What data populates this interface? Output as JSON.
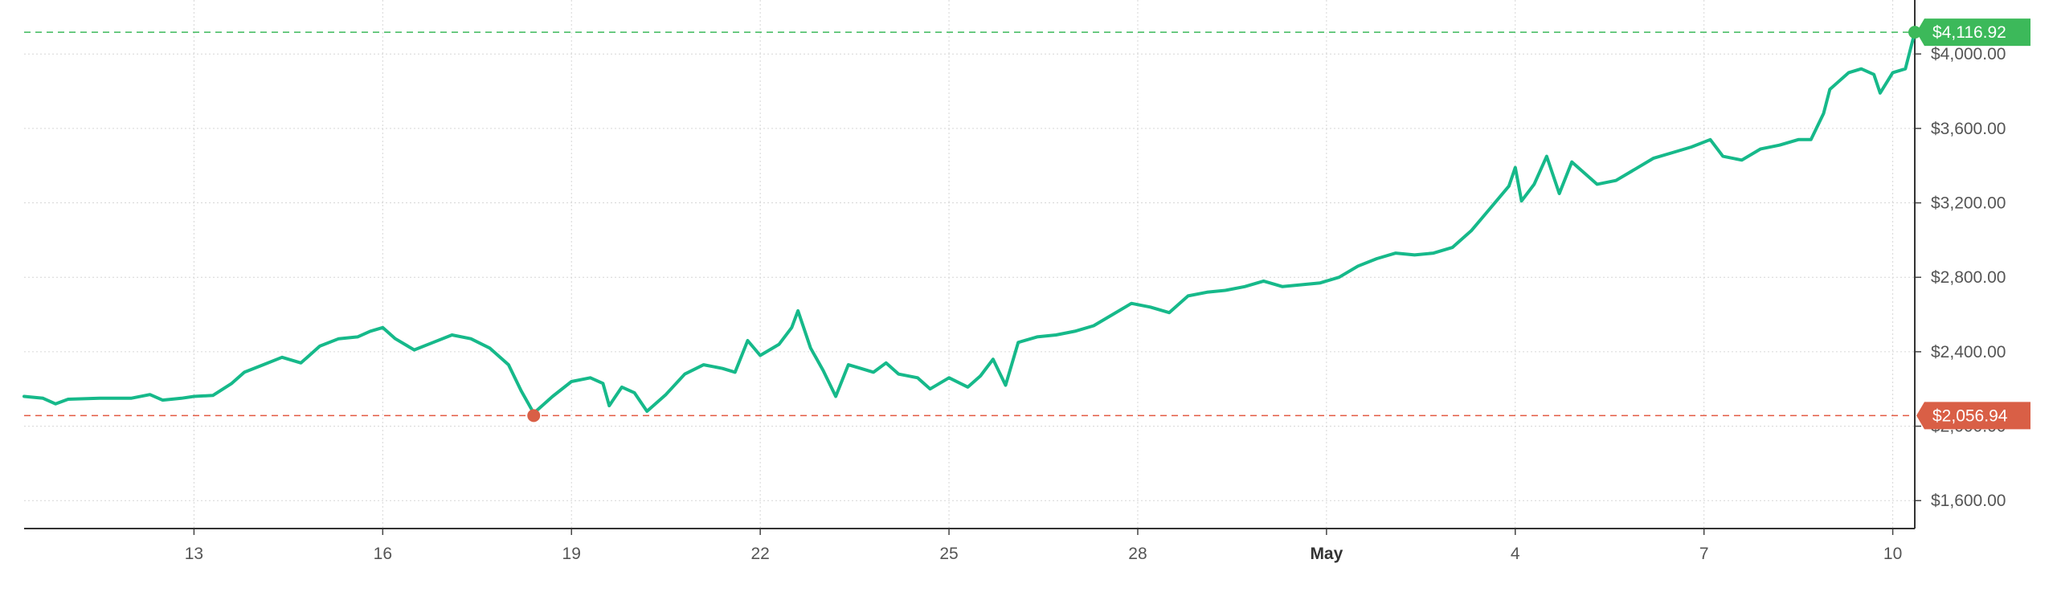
{
  "chart_data": {
    "type": "line",
    "title": "",
    "xlabel": "",
    "ylabel": "",
    "x_ticks": [
      {
        "label": "13",
        "bold": false
      },
      {
        "label": "16",
        "bold": false
      },
      {
        "label": "19",
        "bold": false
      },
      {
        "label": "22",
        "bold": false
      },
      {
        "label": "25",
        "bold": false
      },
      {
        "label": "28",
        "bold": false
      },
      {
        "label": "May",
        "bold": true
      },
      {
        "label": "4",
        "bold": false
      },
      {
        "label": "7",
        "bold": false
      },
      {
        "label": "10",
        "bold": false
      }
    ],
    "x_tick_days": [
      13,
      16,
      19,
      22,
      25,
      28,
      31,
      34,
      37,
      40
    ],
    "xlim": [
      10.3,
      40.35
    ],
    "ylim": [
      1450,
      4290
    ],
    "y_ticks": [
      {
        "value": 1600,
        "label": "$1,600.00"
      },
      {
        "value": 2000,
        "label": "$2,000.00"
      },
      {
        "value": 2400,
        "label": "$2,400.00"
      },
      {
        "value": 2800,
        "label": "$2,800.00"
      },
      {
        "value": 3200,
        "label": "$3,200.00"
      },
      {
        "value": 3600,
        "label": "$3,600.00"
      },
      {
        "value": 4000,
        "label": "$4,000.00"
      }
    ],
    "grid": true,
    "series": [
      {
        "color": "#16b98a",
        "points": [
          [
            10.3,
            2160
          ],
          [
            10.6,
            2150
          ],
          [
            10.8,
            2120
          ],
          [
            11.0,
            2145
          ],
          [
            11.5,
            2150
          ],
          [
            12.0,
            2150
          ],
          [
            12.3,
            2170
          ],
          [
            12.5,
            2140
          ],
          [
            12.8,
            2150
          ],
          [
            13.0,
            2160
          ],
          [
            13.3,
            2165
          ],
          [
            13.6,
            2230
          ],
          [
            13.8,
            2290
          ],
          [
            14.1,
            2330
          ],
          [
            14.4,
            2370
          ],
          [
            14.7,
            2340
          ],
          [
            15.0,
            2430
          ],
          [
            15.3,
            2470
          ],
          [
            15.6,
            2480
          ],
          [
            15.8,
            2510
          ],
          [
            16.0,
            2530
          ],
          [
            16.2,
            2470
          ],
          [
            16.5,
            2410
          ],
          [
            16.8,
            2450
          ],
          [
            17.1,
            2490
          ],
          [
            17.4,
            2470
          ],
          [
            17.7,
            2420
          ],
          [
            18.0,
            2330
          ],
          [
            18.2,
            2190
          ],
          [
            18.4,
            2070
          ],
          [
            18.7,
            2160
          ],
          [
            19.0,
            2240
          ],
          [
            19.3,
            2260
          ],
          [
            19.5,
            2230
          ],
          [
            19.6,
            2110
          ],
          [
            19.8,
            2210
          ],
          [
            20.0,
            2180
          ],
          [
            20.2,
            2080
          ],
          [
            20.5,
            2170
          ],
          [
            20.8,
            2280
          ],
          [
            21.1,
            2330
          ],
          [
            21.4,
            2310
          ],
          [
            21.6,
            2290
          ],
          [
            21.8,
            2460
          ],
          [
            22.0,
            2380
          ],
          [
            22.3,
            2440
          ],
          [
            22.5,
            2530
          ],
          [
            22.6,
            2620
          ],
          [
            22.8,
            2420
          ],
          [
            23.0,
            2300
          ],
          [
            23.2,
            2160
          ],
          [
            23.4,
            2330
          ],
          [
            23.6,
            2310
          ],
          [
            23.8,
            2290
          ],
          [
            24.0,
            2340
          ],
          [
            24.2,
            2280
          ],
          [
            24.5,
            2260
          ],
          [
            24.7,
            2200
          ],
          [
            25.0,
            2260
          ],
          [
            25.3,
            2210
          ],
          [
            25.5,
            2270
          ],
          [
            25.7,
            2360
          ],
          [
            25.9,
            2220
          ],
          [
            26.1,
            2450
          ],
          [
            26.4,
            2480
          ],
          [
            26.7,
            2490
          ],
          [
            27.0,
            2510
          ],
          [
            27.3,
            2540
          ],
          [
            27.6,
            2600
          ],
          [
            27.9,
            2660
          ],
          [
            28.2,
            2640
          ],
          [
            28.5,
            2610
          ],
          [
            28.8,
            2700
          ],
          [
            29.1,
            2720
          ],
          [
            29.4,
            2730
          ],
          [
            29.7,
            2750
          ],
          [
            30.0,
            2780
          ],
          [
            30.3,
            2750
          ],
          [
            30.6,
            2760
          ],
          [
            30.9,
            2770
          ],
          [
            31.2,
            2800
          ],
          [
            31.5,
            2860
          ],
          [
            31.8,
            2900
          ],
          [
            32.1,
            2930
          ],
          [
            32.4,
            2920
          ],
          [
            32.7,
            2930
          ],
          [
            33.0,
            2960
          ],
          [
            33.3,
            3050
          ],
          [
            33.6,
            3170
          ],
          [
            33.9,
            3290
          ],
          [
            34.0,
            3390
          ],
          [
            34.1,
            3210
          ],
          [
            34.3,
            3300
          ],
          [
            34.5,
            3450
          ],
          [
            34.7,
            3250
          ],
          [
            34.9,
            3420
          ],
          [
            35.1,
            3360
          ],
          [
            35.3,
            3300
          ],
          [
            35.6,
            3320
          ],
          [
            35.9,
            3380
          ],
          [
            36.2,
            3440
          ],
          [
            36.5,
            3470
          ],
          [
            36.8,
            3500
          ],
          [
            37.1,
            3540
          ],
          [
            37.3,
            3450
          ],
          [
            37.6,
            3430
          ],
          [
            37.9,
            3490
          ],
          [
            38.2,
            3510
          ],
          [
            38.5,
            3540
          ],
          [
            38.7,
            3540
          ],
          [
            38.9,
            3680
          ],
          [
            39.0,
            3810
          ],
          [
            39.3,
            3900
          ],
          [
            39.5,
            3920
          ],
          [
            39.7,
            3890
          ],
          [
            39.8,
            3790
          ],
          [
            40.0,
            3900
          ],
          [
            40.2,
            3920
          ],
          [
            40.35,
            4116.92
          ]
        ]
      }
    ],
    "high": {
      "x": 40.35,
      "value": 4116.92,
      "label": "$4,116.92",
      "color": "#3cb95a",
      "line_color": "#3cb95a"
    },
    "low": {
      "x": 18.4,
      "value": 2056.94,
      "label": "$2,056.94",
      "color": "#d95f46",
      "line_color": "#e35a42"
    }
  }
}
